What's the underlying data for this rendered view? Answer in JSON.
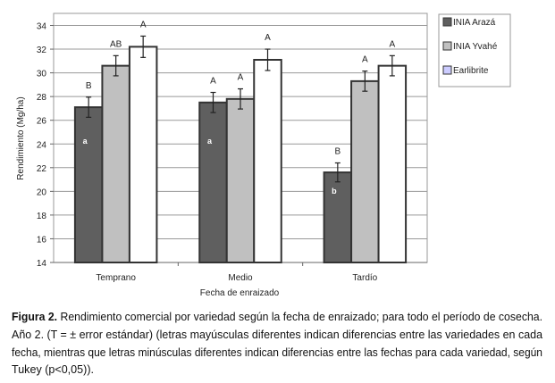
{
  "chart_data": {
    "type": "bar",
    "title": "",
    "xlabel": "Fecha de enraizado",
    "ylabel": "Rendimiento (Mg/ha)",
    "ylim": [
      14,
      34
    ],
    "yticks": [
      14,
      16,
      18,
      20,
      22,
      24,
      26,
      28,
      30,
      32,
      34
    ],
    "grid": true,
    "legend_position": "right",
    "categories": [
      "Temprano",
      "Medio",
      "Tardío"
    ],
    "series": [
      {
        "name": "INIA Arazá",
        "color": "#5f5f5f",
        "values": [
          27.1,
          27.5,
          21.6
        ],
        "errors": [
          0.85,
          0.85,
          0.8
        ],
        "group_letters": [
          "B",
          "A",
          "B"
        ],
        "date_letters": [
          "a",
          "a",
          "b"
        ]
      },
      {
        "name": "INIA Yvahé",
        "color": "#c0c0c0",
        "values": [
          30.6,
          27.8,
          29.3
        ],
        "errors": [
          0.85,
          0.85,
          0.85
        ],
        "group_letters": [
          "AB",
          "A",
          "A"
        ],
        "date_letters": [
          "",
          "",
          ""
        ]
      },
      {
        "name": "Earlibrite",
        "color": "#ffffff",
        "legend_color": "#ccccff",
        "values": [
          32.2,
          31.1,
          30.6
        ],
        "errors": [
          0.9,
          0.9,
          0.85
        ],
        "group_letters": [
          "A",
          "A",
          "A"
        ],
        "date_letters": [
          "",
          "",
          ""
        ]
      }
    ]
  },
  "caption": {
    "label": "Figura 2.",
    "lines": [
      " Rendimiento comercial por variedad según la fecha de enraizado;  para todo el período de cosecha.",
      "Año 2.  (T = ± error estándar) (letras mayúsculas diferentes indican diferencias entre las variedades en cada",
      "fecha, mientras que letras minúsculas diferentes indican diferencias entre las fechas para cada variedad,  según",
      "Tukey (p<0,05))."
    ]
  }
}
